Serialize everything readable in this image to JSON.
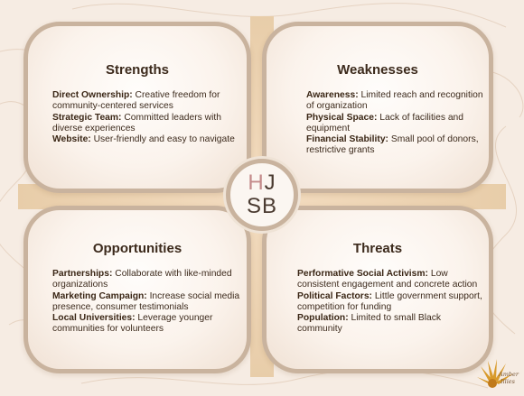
{
  "colors": {
    "background": "#f6ece3",
    "border": "#c9b39e",
    "text": "#3c2a1c",
    "logo_h": "#c48a8a",
    "logo_other": "#4a3a30"
  },
  "quadrants": [
    {
      "title": "Strengths",
      "items": [
        {
          "label": "Direct Ownership:",
          "text": " Creative freedom for community-centered services"
        },
        {
          "label": "Strategic Team:",
          "text": " Committed leaders with diverse experiences"
        },
        {
          "label": "Website:",
          "text": " User-friendly and easy to navigate"
        }
      ]
    },
    {
      "title": "Weaknesses",
      "items": [
        {
          "label": "Awareness:",
          "text": " Limited reach and recognition of organization"
        },
        {
          "label": "Physical Space:",
          "text": " Lack of facilities and equipment"
        },
        {
          "label": "Financial Stability:",
          "text": " Small pool of donors, restrictive grants"
        }
      ]
    },
    {
      "title": "Opportunities",
      "items": [
        {
          "label": "Partnerships:",
          "text": " Collaborate with like-minded organizations"
        },
        {
          "label": "Marketing Campaign:",
          "text": " Increase social media presence, consumer testimonials"
        },
        {
          "label": "Local Universities:",
          "text": " Leverage younger communities for volunteers"
        }
      ]
    },
    {
      "title": "Threats",
      "items": [
        {
          "label": "Performative Social Activism:",
          "text": " Low consistent engagement and concrete action"
        },
        {
          "label": "Political Factors:",
          "text": " Little government support, competition for funding"
        },
        {
          "label": "Population:",
          "text": " Limited to small Black community"
        }
      ]
    }
  ],
  "logo": {
    "h": "H",
    "j": "J",
    "s": "S",
    "b": "B"
  },
  "brand": {
    "line1": "Amber",
    "line2": "Illies"
  }
}
